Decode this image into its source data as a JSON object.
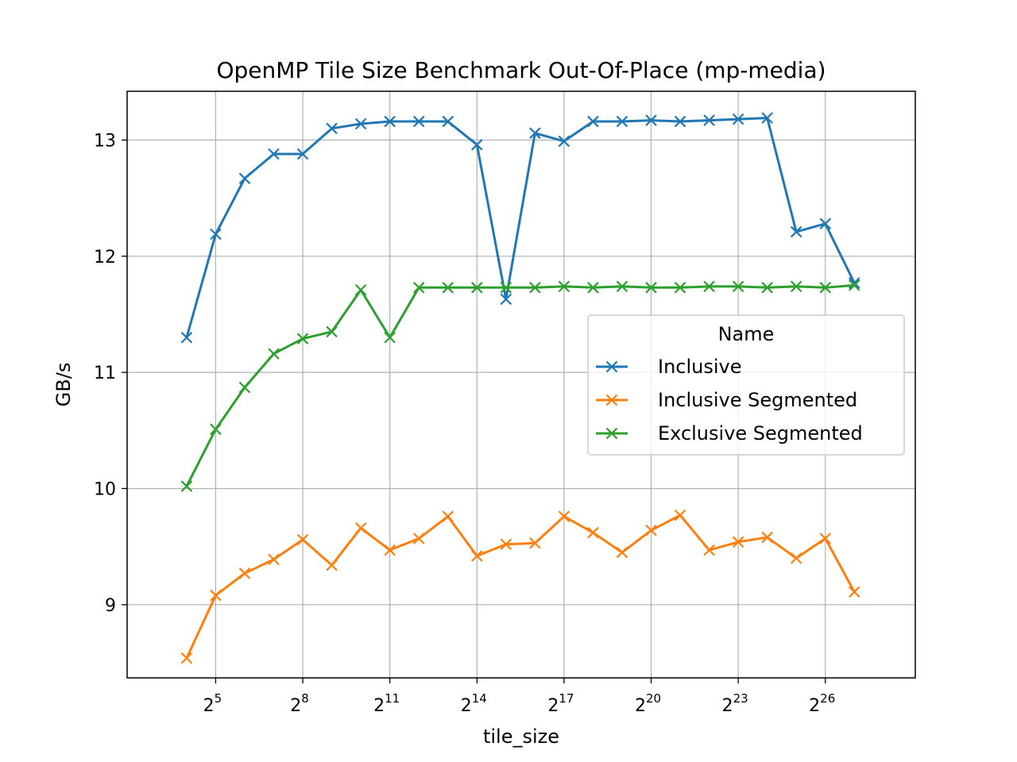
{
  "chart_data": {
    "type": "line",
    "title": "OpenMP Tile Size Benchmark Out-Of-Place (mp-media)",
    "xlabel": "tile_size",
    "ylabel": "GB/s",
    "x_scale": "log2",
    "x_exponents": [
      4,
      5,
      6,
      7,
      8,
      9,
      10,
      11,
      12,
      13,
      14,
      15,
      16,
      17,
      18,
      19,
      20,
      21,
      22,
      23,
      24,
      25,
      26,
      27
    ],
    "x_tick_exponents": [
      5,
      8,
      11,
      14,
      17,
      20,
      23,
      26
    ],
    "x_tick_base": "2",
    "xlim_exponent": [
      1.95,
      29.1
    ],
    "ylim": [
      8.37,
      13.42
    ],
    "y_ticks": [
      9,
      10,
      11,
      12,
      13
    ],
    "grid": true,
    "marker": "x",
    "legend": {
      "title": "Name",
      "placement": "center-right"
    },
    "series": [
      {
        "name": "Inclusive",
        "color": "#1f77b4",
        "values": [
          11.3,
          12.19,
          12.67,
          12.88,
          12.88,
          13.1,
          13.14,
          13.16,
          13.16,
          13.16,
          12.96,
          11.63,
          13.06,
          12.99,
          13.16,
          13.16,
          13.17,
          13.16,
          13.17,
          13.18,
          13.19,
          12.21,
          12.28,
          11.77
        ]
      },
      {
        "name": "Inclusive Segmented",
        "color": "#ff7f0e",
        "values": [
          8.54,
          9.08,
          9.27,
          9.39,
          9.56,
          9.34,
          9.66,
          9.47,
          9.57,
          9.76,
          9.42,
          9.52,
          9.53,
          9.76,
          9.62,
          9.45,
          9.64,
          9.77,
          9.47,
          9.54,
          9.58,
          9.4,
          9.57,
          9.11
        ]
      },
      {
        "name": "Exclusive Segmented",
        "color": "#2ca02c",
        "values": [
          10.02,
          10.51,
          10.87,
          11.16,
          11.29,
          11.35,
          11.71,
          11.3,
          11.73,
          11.73,
          11.73,
          11.73,
          11.73,
          11.74,
          11.73,
          11.74,
          11.73,
          11.73,
          11.74,
          11.74,
          11.73,
          11.74,
          11.73,
          11.75
        ]
      }
    ]
  }
}
